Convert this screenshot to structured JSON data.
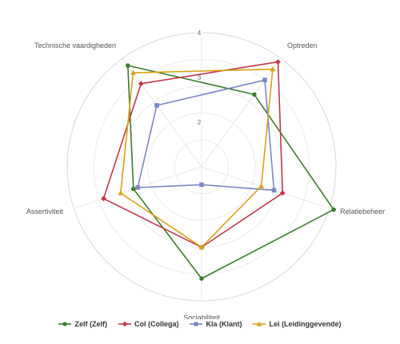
{
  "chart_data": {
    "type": "radar",
    "axes": [
      "Optreden",
      "Relatiebeheer",
      "Sociabiliteit",
      "Assertiviteit",
      "Technische vaardigheden"
    ],
    "scale": {
      "min": 1,
      "max": 4,
      "ticks": [
        2,
        3,
        4
      ]
    },
    "series": [
      {
        "name": "Zelf (Zelf)",
        "color": "#3a7d2a",
        "marker": "circle",
        "values": [
          3.0,
          4.1,
          3.5,
          2.6,
          3.8
        ]
      },
      {
        "name": "Col (Collega)",
        "color": "#c0394b",
        "marker": "diamond",
        "values": [
          3.9,
          2.9,
          2.8,
          3.3,
          3.3
        ]
      },
      {
        "name": "Kla (Klant)",
        "color": "#7b86c4",
        "marker": "square",
        "values": [
          3.4,
          2.7,
          1.4,
          2.5,
          2.7
        ]
      },
      {
        "name": "Lei (Leidinggevende)",
        "color": "#d9a11a",
        "marker": "triangle",
        "values": [
          3.7,
          2.4,
          2.8,
          2.9,
          3.6
        ]
      }
    ],
    "grid": true,
    "legend_position": "bottom"
  }
}
